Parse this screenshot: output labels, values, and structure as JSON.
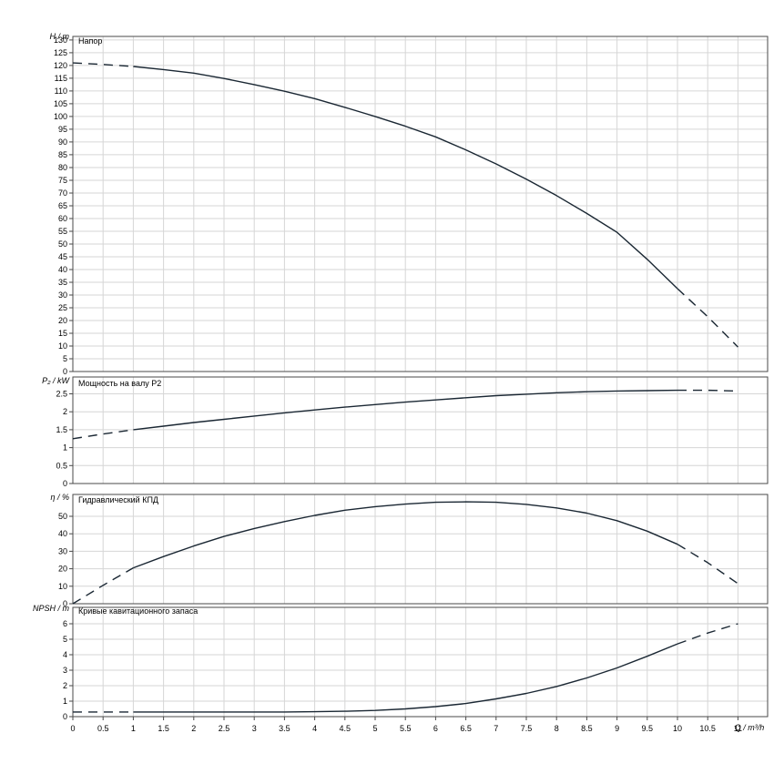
{
  "colors": {
    "curve": "#1a2733",
    "grid": "#d6d6d6",
    "border": "#4a4a4a",
    "text": "#000000",
    "background": "#ffffff"
  },
  "axis": {
    "x_label": "Q / m³/h",
    "x_ticks": [
      "0",
      "0.5",
      "1",
      "1.5",
      "2",
      "2.5",
      "3",
      "3.5",
      "4",
      "4.5",
      "5",
      "5.5",
      "6",
      "6.5",
      "7",
      "7.5",
      "8",
      "8.5",
      "9",
      "9.5",
      "10",
      "10.5",
      "11"
    ]
  },
  "chart_data": [
    {
      "type": "line",
      "title": "Напор",
      "ylabel": "H / m",
      "xlabel": "Q / m³/h",
      "ylim": [
        0,
        130
      ],
      "grid": true,
      "legend": "none",
      "y_ticks": [
        "0",
        "5",
        "10",
        "15",
        "20",
        "25",
        "30",
        "35",
        "40",
        "45",
        "50",
        "55",
        "60",
        "65",
        "70",
        "75",
        "80",
        "85",
        "90",
        "95",
        "100",
        "105",
        "110",
        "115",
        "120",
        "125",
        "130"
      ],
      "solid_q_range": [
        1,
        10
      ],
      "series": [
        {
          "name": "head",
          "y": [
            121,
            120.4,
            119.6,
            118.4,
            117,
            114.9,
            112.5,
            109.9,
            107,
            103.6,
            100,
            96.2,
            92,
            86.9,
            81.4,
            75.4,
            69,
            62,
            54.6,
            44,
            32.5,
            21.5,
            9.6
          ]
        }
      ]
    },
    {
      "type": "line",
      "title": "Мощность на валу P2",
      "ylabel": "P₂ / kW",
      "xlabel": "Q / m³/h",
      "ylim": [
        0,
        3
      ],
      "grid": true,
      "legend": "none",
      "y_ticks": [
        "0",
        "0.5",
        "1",
        "1.5",
        "2",
        "2.5"
      ],
      "solid_q_range": [
        1,
        10
      ],
      "series": [
        {
          "name": "shaft-power",
          "y": [
            1.25,
            1.38,
            1.5,
            1.6,
            1.7,
            1.79,
            1.88,
            1.97,
            2.05,
            2.13,
            2.2,
            2.27,
            2.33,
            2.39,
            2.45,
            2.49,
            2.53,
            2.56,
            2.58,
            2.59,
            2.6,
            2.6,
            2.58
          ]
        }
      ]
    },
    {
      "type": "line",
      "title": "Гидравлический КПД",
      "ylabel": "η / %",
      "xlabel": "Q / m³/h",
      "ylim": [
        0,
        60
      ],
      "grid": true,
      "legend": "none",
      "y_ticks": [
        "0",
        "10",
        "20",
        "30",
        "40",
        "50"
      ],
      "solid_q_range": [
        1,
        10
      ],
      "series": [
        {
          "name": "efficiency",
          "y": [
            0,
            10.5,
            20.5,
            27,
            33,
            38.5,
            43,
            47,
            50.5,
            53.5,
            55.5,
            57,
            58,
            58.3,
            58,
            56.8,
            54.8,
            51.8,
            47.5,
            41.5,
            34,
            23.5,
            11.5
          ]
        }
      ]
    },
    {
      "type": "line",
      "title": "Кривые кавитационного запаса",
      "ylabel": "NPSH / m",
      "xlabel": "Q / m³/h",
      "ylim": [
        0,
        7
      ],
      "grid": true,
      "legend": "none",
      "y_ticks": [
        "0",
        "1",
        "2",
        "3",
        "4",
        "5",
        "6"
      ],
      "solid_q_range": [
        1,
        10
      ],
      "series": [
        {
          "name": "npsh",
          "y": [
            0.3,
            0.3,
            0.3,
            0.3,
            0.3,
            0.3,
            0.3,
            0.3,
            0.32,
            0.35,
            0.4,
            0.5,
            0.65,
            0.85,
            1.15,
            1.5,
            1.95,
            2.5,
            3.15,
            3.9,
            4.7,
            5.4,
            6.0
          ]
        }
      ]
    }
  ]
}
